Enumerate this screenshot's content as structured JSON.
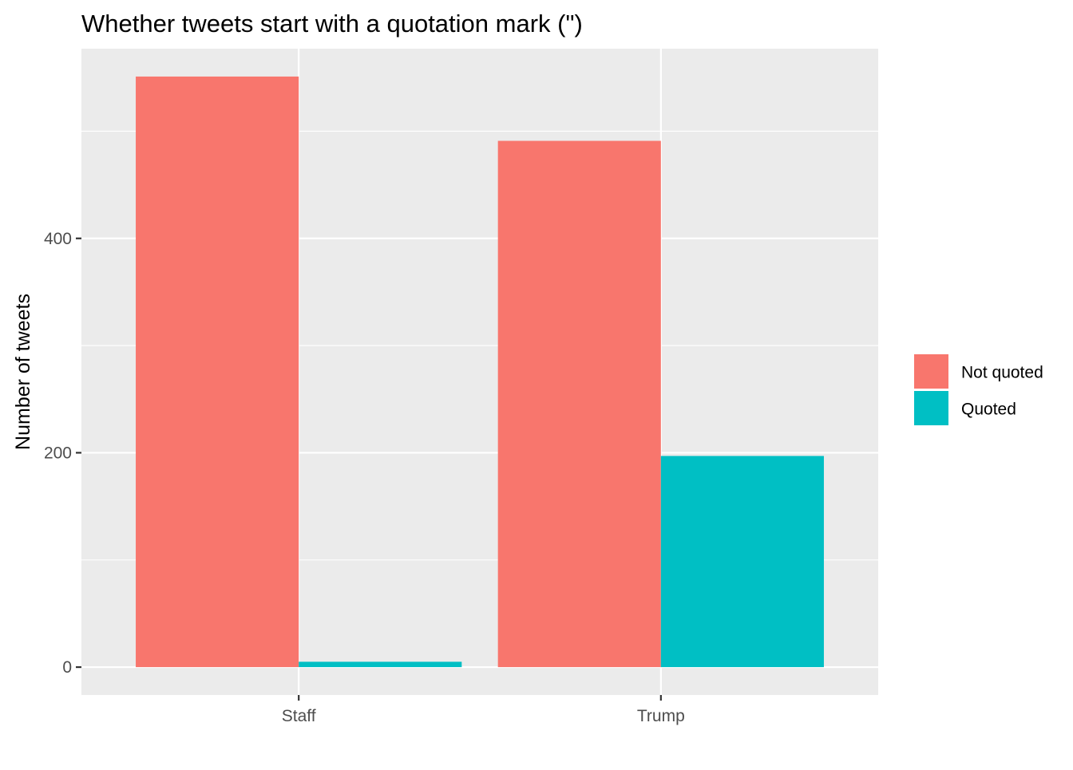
{
  "chart_data": {
    "type": "bar",
    "title": "Whether tweets start with a quotation mark (\")",
    "xlabel": "",
    "ylabel": "Number of tweets",
    "categories": [
      "Staff",
      "Trump"
    ],
    "series": [
      {
        "name": "Not quoted",
        "values": [
          551,
          491
        ],
        "color": "#F8766D"
      },
      {
        "name": "Quoted",
        "values": [
          5,
          197
        ],
        "color": "#00BFC4"
      }
    ],
    "ylim": [
      -26,
      577
    ],
    "y_ticks": [
      0,
      200,
      400
    ],
    "y_tick_labels": [
      "0",
      "200",
      "400"
    ],
    "grid": true,
    "legend_position": "right",
    "panel_background": "#EBEBEB",
    "grid_color": "#FFFFFF"
  }
}
